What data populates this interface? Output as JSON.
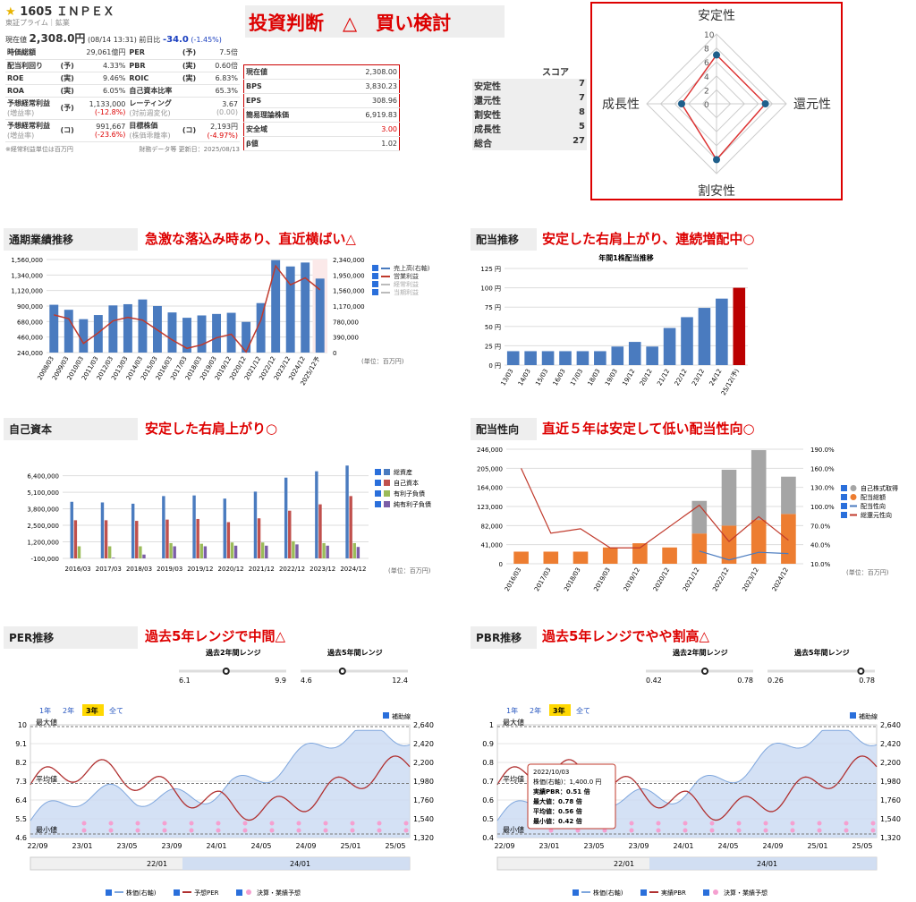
{
  "header": {
    "star": "★",
    "code": "1605",
    "name": "ＩＮＰＥＸ",
    "market": "東証プライム｜鉱業",
    "price_label": "現在値",
    "price": "2,308.0円",
    "date": "(08/14 13:31)",
    "prev_label": "前日比",
    "change": "-34.0",
    "change_pct": "(-1.45%)"
  },
  "metrics": [
    {
      "k1": "時価総額",
      "v1": "29,061億円",
      "k2": "PER",
      "t2": "(予)",
      "v2": "7.5倍"
    },
    {
      "k1": "配当利回り",
      "t1": "(予)",
      "v1": "4.33%",
      "k2": "PBR",
      "t2": "(実)",
      "v2": "0.60倍"
    },
    {
      "k1": "ROE",
      "t1": "(実)",
      "v1": "9.46%",
      "k2": "ROIC",
      "t2": "(実)",
      "v2": "6.83%"
    },
    {
      "k1": "ROA",
      "t1": "(実)",
      "v1": "6.05%",
      "k2": "自己資本比率",
      "v2": "65.3%"
    },
    {
      "k1": "予想経常利益",
      "t1": "(予)",
      "s1": "(増益率)",
      "v1": "1,133,000",
      "sv1": "(-12.8%)",
      "k2": "レーティング",
      "s2": "(対前週変化)",
      "v2": "3.67",
      "sv2": "(0.00)"
    },
    {
      "k1": "予想経常利益",
      "t1": "(コ)",
      "s1": "(増益率)",
      "v1": "991,667",
      "sv1": "(-23.6%)",
      "k2": "目標株価",
      "t2": "(コ)",
      "s2": "(株価乖離率)",
      "v2": "2,193円",
      "sv2": "(-4.97%)"
    }
  ],
  "footnote_left": "※経常利益単位は百万円",
  "footnote_right": "財務データ等 更新日：2025/08/13",
  "judgement": "投資判断　△　買い検討",
  "valuation": [
    {
      "k": "現在値",
      "v": "2,308.00"
    },
    {
      "k": "BPS",
      "v": "3,830.23"
    },
    {
      "k": "EPS",
      "v": "308.96"
    },
    {
      "k": "簡易理論株価",
      "v": "6,919.83"
    },
    {
      "k": "安全域",
      "v": "3.00"
    },
    {
      "k": "β値",
      "v": "1.02"
    }
  ],
  "score": {
    "header": "スコア",
    "rows": [
      {
        "k": "安定性",
        "v": "7"
      },
      {
        "k": "還元性",
        "v": "7"
      },
      {
        "k": "割安性",
        "v": "8"
      },
      {
        "k": "成長性",
        "v": "5"
      },
      {
        "k": "総合",
        "v": "27"
      }
    ]
  },
  "radar": {
    "axes": [
      "安定性",
      "還元性",
      "割安性",
      "成長性"
    ],
    "values": [
      7,
      7,
      8,
      5
    ],
    "max": 10,
    "ticks": [
      "10",
      "8",
      "6",
      "4",
      "2",
      "0"
    ]
  },
  "sections": {
    "perf": {
      "title": "通期業績推移",
      "comment": "急激な落込み時あり、直近横ばい△",
      "unit": "(単位：百万円)"
    },
    "div": {
      "title": "配当推移",
      "comment": "安定した右肩上がり、連続増配中○",
      "chart_title": "年間1株配当推移"
    },
    "equity": {
      "title": "自己資本",
      "comment": "安定した右肩上がり○",
      "unit": "(単位：百万円)"
    },
    "payout": {
      "title": "配当性向",
      "comment": "直近５年は安定して低い配当性向○",
      "unit": "(単位：百万円)"
    },
    "per": {
      "title": "PER推移",
      "comment": "過去5年レンジで中間△"
    },
    "pbr": {
      "title": "PBR推移",
      "comment": "過去5年レンジでやや割高△"
    }
  },
  "chart_data": [
    {
      "type": "bar",
      "name": "perf",
      "categories": [
        "2008/03",
        "2009/03",
        "2010/03",
        "2011/03",
        "2012/03",
        "2013/03",
        "2014/03",
        "2015/03",
        "2016/03",
        "2017/03",
        "2018/03",
        "2019/03",
        "2019/12",
        "2020/12",
        "2021/12",
        "2022/12",
        "2023/12",
        "2024/12",
        "2025/12予"
      ],
      "series": [
        {
          "name": "売上高(右軸)",
          "values": [
            1202000,
            1076000,
            840000,
            944000,
            1186000,
            1216000,
            1335000,
            1171000,
            1009000,
            875000,
            934000,
            971000,
            1000000,
            771000,
            1244000,
            2324000,
            2165000,
            2264000,
            1860000
          ]
        },
        {
          "name": "営業利益",
          "values": [
            775000,
            720000,
            370000,
            520000,
            690000,
            740000,
            700000,
            560000,
            420000,
            300000,
            350000,
            450000,
            500000,
            250000,
            700000,
            1470000,
            1200000,
            1300000,
            1130000
          ]
        }
      ],
      "yleft": [
        "1,560,000",
        "1,340,000",
        "1,120,000",
        "900,000",
        "680,000",
        "460,000",
        "240,000"
      ],
      "yright": [
        "2,340,000",
        "1,950,000",
        "1,560,000",
        "1,170,000",
        "780,000",
        "390,000",
        "0"
      ],
      "legend": [
        "売上高(右軸)",
        "営業利益",
        "経常利益",
        "当期利益"
      ],
      "ylim": [
        240000,
        1560000
      ],
      "y2lim": [
        0,
        2340000
      ]
    },
    {
      "type": "bar",
      "name": "dividend",
      "title": "年間1株配当推移",
      "categories": [
        "13/03",
        "14/03",
        "15/03",
        "16/03",
        "17/03",
        "18/03",
        "19/03",
        "19/12",
        "20/12",
        "21/12",
        "22/12",
        "23/12",
        "24/12",
        "25/12(予)"
      ],
      "values": [
        18,
        18,
        18,
        18,
        18,
        18,
        24,
        30,
        24,
        48,
        62,
        74,
        86,
        100
      ],
      "yticks": [
        "125 円",
        "100 円",
        "75 円",
        "50 円",
        "25 円",
        "0 円"
      ],
      "ylim": [
        0,
        125
      ]
    },
    {
      "type": "bar",
      "name": "equity",
      "categories": [
        "2016/03",
        "2017/03",
        "2018/03",
        "2019/03",
        "2019/12",
        "2020/12",
        "2021/12",
        "2022/12",
        "2023/12",
        "2024/12"
      ],
      "series": [
        {
          "name": "総資産",
          "values": [
            4350000,
            4300000,
            4200000,
            4800000,
            4850000,
            4600000,
            5150000,
            6250000,
            6750000,
            7200000
          ]
        },
        {
          "name": "自己資本",
          "values": [
            2900000,
            2900000,
            2850000,
            2950000,
            3000000,
            2750000,
            3050000,
            3650000,
            4150000,
            4800000
          ]
        },
        {
          "name": "有利子負債",
          "values": [
            850000,
            850000,
            850000,
            1100000,
            1050000,
            1150000,
            1150000,
            1250000,
            1100000,
            1100000
          ]
        },
        {
          "name": "純有利子負債",
          "values": [
            -100000,
            -50000,
            200000,
            850000,
            850000,
            900000,
            900000,
            1000000,
            900000,
            800000
          ]
        }
      ],
      "yticks": [
        "6,400,000",
        "5,100,000",
        "3,800,000",
        "2,500,000",
        "1,200,000",
        "-100,000"
      ],
      "ylim": [
        -100000,
        7500000
      ]
    },
    {
      "type": "bar",
      "name": "payout",
      "categories": [
        "2016/03",
        "2017/03",
        "2018/03",
        "2019/03",
        "2019/12",
        "2020/12",
        "2021/12",
        "2022/12",
        "2023/12",
        "2024/12"
      ],
      "series": [
        {
          "name": "自己株式取得",
          "values": [
            0,
            0,
            0,
            0,
            0,
            0,
            70000,
            120000,
            150000,
            80000
          ]
        },
        {
          "name": "配当総額",
          "values": [
            26000,
            26000,
            26000,
            35000,
            44000,
            35000,
            65000,
            82000,
            94000,
            107000
          ]
        },
        {
          "name": "配当性向",
          "values": [
            null,
            null,
            null,
            null,
            null,
            null,
            30,
            16,
            28,
            26
          ]
        },
        {
          "name": "総還元性向",
          "values": [
            160,
            58,
            65,
            35,
            35,
            null,
            102,
            45,
            84,
            47
          ]
        }
      ],
      "yticks": [
        "246,000",
        "205,000",
        "164,000",
        "123,000",
        "82,000",
        "41,000",
        "0"
      ],
      "y2ticks": [
        "190.0%",
        "160.0%",
        "130.0%",
        "100.0%",
        "70.0%",
        "40.0%",
        "10.0%"
      ]
    },
    {
      "type": "line",
      "name": "per",
      "tabs": [
        "1年",
        "2年",
        "3年",
        "全て"
      ],
      "active_tab": "3年",
      "aux": "補助線",
      "range2_label": "過去2年間レンジ",
      "range2": [
        "6.1",
        "9.9"
      ],
      "range2_pos": 0.44,
      "range5_label": "過去5年間レンジ",
      "range5": [
        "4.6",
        "12.4"
      ],
      "range5_pos": 0.39,
      "yleft": [
        "10",
        "9.1",
        "8.2",
        "7.3",
        "6.4",
        "5.5",
        "4.6"
      ],
      "yright": [
        "2,640",
        "2,420",
        "2,200",
        "1,980",
        "1,760",
        "1,540",
        "1,320"
      ],
      "xticks": [
        "22/09",
        "23/01",
        "23/05",
        "23/09",
        "24/01",
        "24/05",
        "24/09",
        "25/01",
        "25/05"
      ],
      "marks": {
        "max": "最大値",
        "avg": "平均値",
        "min": "最小値"
      },
      "nav": [
        "22/01",
        "24/01"
      ],
      "legend": [
        "株価(右軸)",
        "予想PER",
        "決算・業績予想"
      ]
    },
    {
      "type": "line",
      "name": "pbr",
      "tabs": [
        "1年",
        "2年",
        "3年",
        "全て"
      ],
      "active_tab": "3年",
      "aux": "補助線",
      "range2_label": "過去2年間レンジ",
      "range2": [
        "0.42",
        "0.78"
      ],
      "range2_pos": 0.55,
      "range5_label": "過去5年間レンジ",
      "range5": [
        "0.26",
        "0.78"
      ],
      "range5_pos": 0.87,
      "yleft": [
        "1",
        "0.9",
        "0.8",
        "0.7",
        "0.6",
        "0.5",
        "0.4"
      ],
      "yright": [
        "2,640",
        "2,420",
        "2,200",
        "1,980",
        "1,760",
        "1,540",
        "1,320"
      ],
      "xticks": [
        "22/09",
        "23/01",
        "23/05",
        "23/09",
        "24/01",
        "24/05",
        "24/09",
        "25/01",
        "25/05"
      ],
      "marks": {
        "max": "最大値",
        "avg": "平均値",
        "min": "最小値"
      },
      "nav": [
        "22/01",
        "24/01"
      ],
      "tooltip": {
        "date": "2022/10/03",
        "price": "株価(右軸)：1,400.0 円",
        "pbr": "実績PBR：0.51 倍",
        "max": "最大値：0.78 倍",
        "avg": "平均値：0.56 倍",
        "min": "最小値：0.42 倍"
      },
      "legend": [
        "株価(右軸)",
        "実績PBR",
        "決算・業績予想"
      ]
    }
  ],
  "colors": {
    "blue": "#4a7bbf",
    "red": "#c0392b",
    "orange": "#ed7d31",
    "gray": "#a5a5a5",
    "green": "#9bbb59",
    "purple": "#7b5ea7",
    "accent": "#d00000"
  }
}
